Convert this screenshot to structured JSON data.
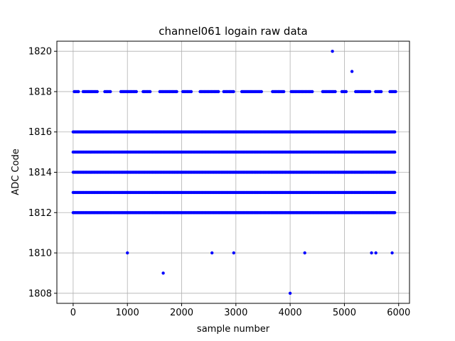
{
  "chart_data": {
    "type": "scatter",
    "title": "channel061 logain raw data",
    "xlabel": "sample number",
    "ylabel": "ADC Code",
    "xlim": [
      -300,
      6200
    ],
    "ylim": [
      1807.5,
      1820.5
    ],
    "xticks": [
      0,
      1000,
      2000,
      3000,
      4000,
      5000,
      6000
    ],
    "yticks": [
      1808,
      1810,
      1812,
      1814,
      1816,
      1818,
      1820
    ],
    "grid": true,
    "marker_color": "#0000ff",
    "sample_range": [
      0,
      5950
    ],
    "dense_levels": [
      1812,
      1813,
      1814,
      1815,
      1816
    ],
    "sparse_levels": [
      1818
    ],
    "outliers": [
      {
        "x": 1000,
        "y": 1810
      },
      {
        "x": 1660,
        "y": 1809
      },
      {
        "x": 2560,
        "y": 1810
      },
      {
        "x": 2960,
        "y": 1810
      },
      {
        "x": 4000,
        "y": 1808
      },
      {
        "x": 4270,
        "y": 1810
      },
      {
        "x": 4780,
        "y": 1820
      },
      {
        "x": 5140,
        "y": 1819
      },
      {
        "x": 5500,
        "y": 1810
      },
      {
        "x": 5580,
        "y": 1810
      },
      {
        "x": 5880,
        "y": 1810
      }
    ]
  }
}
